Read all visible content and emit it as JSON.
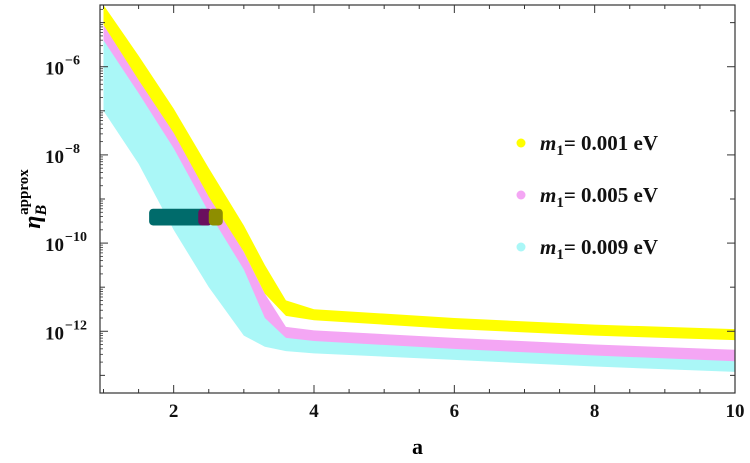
{
  "chart_data": {
    "type": "scatter",
    "xlabel": "a",
    "ylabel": {
      "main": "η",
      "sub": "B",
      "sup": "approx"
    },
    "xlim": [
      0.95,
      10
    ],
    "ylog": true,
    "ylim_exp": [
      -13.4,
      -4.6
    ],
    "x_ticks": [
      2,
      4,
      6,
      8,
      10
    ],
    "y_ticks": [
      {
        "exp": -6,
        "label_base": "10",
        "label_exp": "−6"
      },
      {
        "exp": -8,
        "label_base": "10",
        "label_exp": "−8"
      },
      {
        "exp": -10,
        "label_base": "10",
        "label_exp": "−10"
      },
      {
        "exp": -12,
        "label_base": "10",
        "label_exp": "−12"
      }
    ],
    "legend_position": "right",
    "series": [
      {
        "name_var": "m",
        "name_sub": "1",
        "name_rest": "= 0.001 eV",
        "color": "#ffff00",
        "band": [
          {
            "x": 1.0,
            "lo": -5.05,
            "hi": -4.6
          },
          {
            "x": 1.5,
            "lo": -6.3,
            "hi": -5.75
          },
          {
            "x": 2.0,
            "lo": -7.5,
            "hi": -6.95
          },
          {
            "x": 2.5,
            "lo": -8.95,
            "hi": -8.3
          },
          {
            "x": 3.0,
            "lo": -10.2,
            "hi": -9.6
          },
          {
            "x": 3.3,
            "lo": -11.15,
            "hi": -10.5
          },
          {
            "x": 3.6,
            "lo": -11.65,
            "hi": -11.3
          },
          {
            "x": 4.0,
            "lo": -11.75,
            "hi": -11.5
          },
          {
            "x": 6.0,
            "lo": -11.95,
            "hi": -11.7
          },
          {
            "x": 8.0,
            "lo": -12.1,
            "hi": -11.85
          },
          {
            "x": 10.0,
            "lo": -12.2,
            "hi": -11.95
          }
        ]
      },
      {
        "name_var": "m",
        "name_sub": "1",
        "name_rest": "= 0.005 eV",
        "color": "#f4a6f4",
        "band": [
          {
            "x": 1.0,
            "lo": -5.4,
            "hi": -5.05
          },
          {
            "x": 1.5,
            "lo": -6.6,
            "hi": -6.25
          },
          {
            "x": 2.0,
            "lo": -7.85,
            "hi": -7.45
          },
          {
            "x": 2.5,
            "lo": -9.3,
            "hi": -8.9
          },
          {
            "x": 3.0,
            "lo": -10.6,
            "hi": -10.2
          },
          {
            "x": 3.3,
            "lo": -11.7,
            "hi": -11.15
          },
          {
            "x": 3.6,
            "lo": -12.15,
            "hi": -11.9
          },
          {
            "x": 4.0,
            "lo": -12.22,
            "hi": -11.98
          },
          {
            "x": 6.0,
            "lo": -12.4,
            "hi": -12.15
          },
          {
            "x": 8.0,
            "lo": -12.55,
            "hi": -12.3
          },
          {
            "x": 10.0,
            "lo": -12.68,
            "hi": -12.42
          }
        ]
      },
      {
        "name_var": "m",
        "name_sub": "1",
        "name_rest": "= 0.009 eV",
        "color": "#aaf7f7",
        "band": [
          {
            "x": 1.0,
            "lo": -7.0,
            "hi": -5.3
          },
          {
            "x": 1.5,
            "lo": -8.2,
            "hi": -6.5
          },
          {
            "x": 2.0,
            "lo": -9.7,
            "hi": -7.8
          },
          {
            "x": 2.5,
            "lo": -11.0,
            "hi": -9.2
          },
          {
            "x": 3.0,
            "lo": -12.1,
            "hi": -10.5
          },
          {
            "x": 3.3,
            "lo": -12.35,
            "hi": -11.6
          },
          {
            "x": 3.6,
            "lo": -12.45,
            "hi": -12.1
          },
          {
            "x": 4.0,
            "lo": -12.5,
            "hi": -12.15
          },
          {
            "x": 6.0,
            "lo": -12.65,
            "hi": -12.35
          },
          {
            "x": 8.0,
            "lo": -12.8,
            "hi": -12.5
          },
          {
            "x": 10.0,
            "lo": -12.92,
            "hi": -12.62
          }
        ]
      }
    ],
    "observed_region": {
      "y_exp_range": [
        -9.6,
        -9.22
      ],
      "segments": [
        {
          "x_range": [
            1.65,
            2.45
          ],
          "color": "#006b6b"
        },
        {
          "x_range": [
            2.35,
            2.55
          ],
          "color": "#6a0f5e"
        },
        {
          "x_range": [
            2.5,
            2.7
          ],
          "color": "#8e8e00"
        }
      ]
    }
  }
}
